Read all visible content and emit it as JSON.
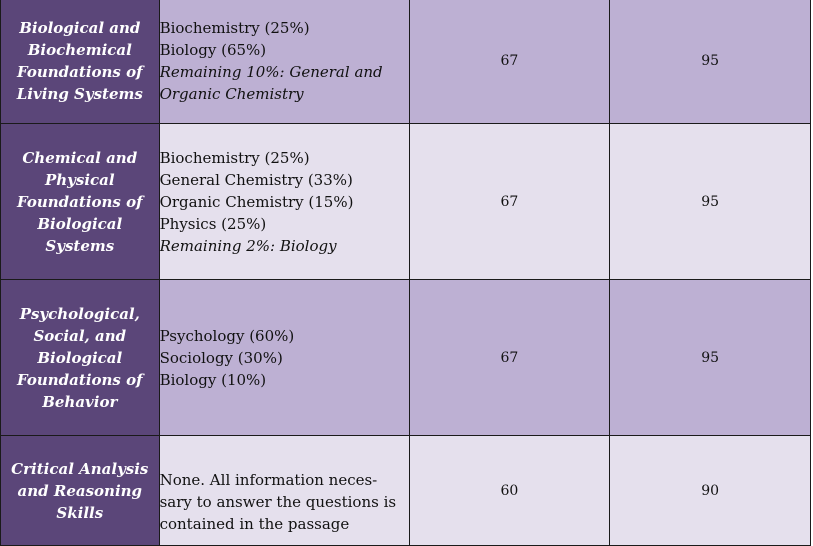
{
  "rows": [
    {
      "section": "Biological and Biochemical Foundations of Living Systems",
      "disciplines": [
        "Biochemistry (25%)",
        "Biology (65%)"
      ],
      "remaining": "Remaining 10%:  General and Organic Chemistry",
      "col3": "67",
      "col4": "95"
    },
    {
      "section": "Chemical and Physical Foundations of Biological Systems",
      "disciplines": [
        "Biochemistry (25%)",
        "General Chemistry (33%)",
        "Organic Chemistry (15%)",
        "Physics (25%)"
      ],
      "remaining": "Remaining 2%:  Biology",
      "col3": "67",
      "col4": "95"
    },
    {
      "section": "Psychological, Social, and Biological Foundations of Behavior",
      "disciplines": [
        "Psychology (60%)",
        "Sociology (30%)",
        "Biology (10%)"
      ],
      "remaining": "",
      "col3": "67",
      "col4": "95"
    },
    {
      "section": "Critical Analysis and Reasoning Skills",
      "disciplines": [
        "None.  All information neces-sary to answer the questions is contained in the passage"
      ],
      "remaining": "",
      "col3": "60",
      "col4": "90"
    }
  ]
}
